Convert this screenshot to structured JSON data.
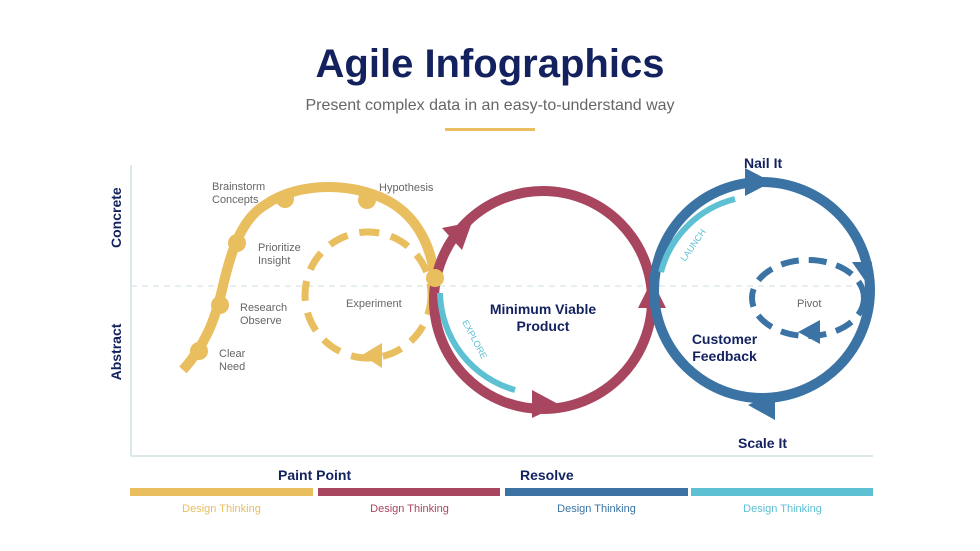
{
  "header": {
    "title": "Agile Infographics",
    "subtitle": "Present complex data in an easy-to-understand way"
  },
  "axes": {
    "top": "Concrete",
    "bottom": "Abstract"
  },
  "colors": {
    "gold": "#E8BE5E",
    "maroon": "#A8465F",
    "blue": "#3A73A4",
    "light_blue": "#5EC0D3",
    "navy": "#13225E"
  },
  "stages": [
    "Clear Need",
    "Research Observe",
    "Prioritize Insight",
    "Brainstorm Concepts",
    "Hypothesis"
  ],
  "labels": {
    "clear": [
      "Clear",
      "Need"
    ],
    "research": [
      "Research",
      "Observe"
    ],
    "prioritize": [
      "Prioritize",
      "Insight"
    ],
    "brainstorm": [
      "Brainstorm",
      "Concepts"
    ],
    "hypothesis": "Hypothesis",
    "experiment": "Experiment",
    "mvp": [
      "Minimum Viable",
      "Product"
    ],
    "explore": "EXPLORE",
    "launch": "LAUNCH",
    "nail": "Nail It",
    "pivot": "Pivot",
    "feedback": [
      "Customer",
      "Feedback"
    ],
    "scale": "Scale It"
  },
  "footer": {
    "paint": "Paint Point",
    "resolve": "Resolve",
    "phases": [
      "Design Thinking",
      "Design Thinking",
      "Design Thinking",
      "Design Thinking"
    ]
  }
}
